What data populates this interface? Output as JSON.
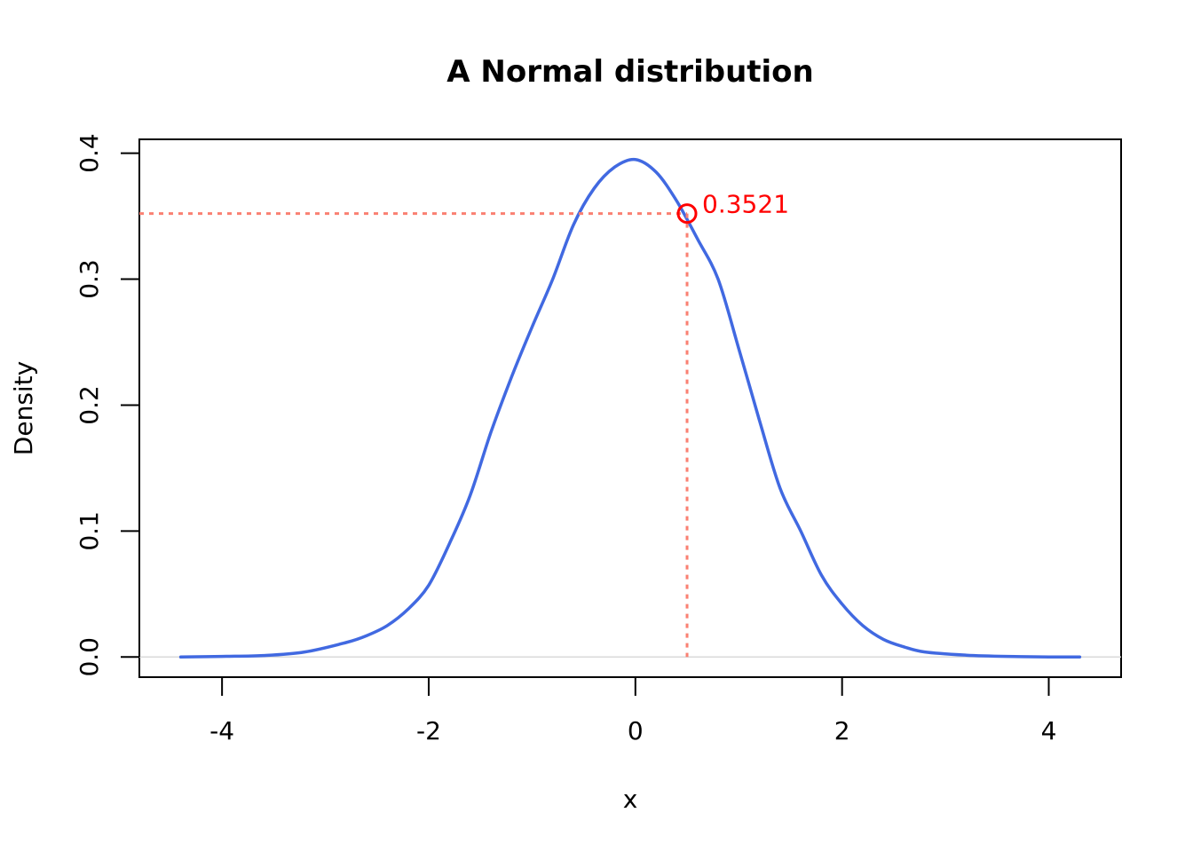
{
  "chart_data": {
    "type": "line",
    "title": "A Normal distribution",
    "xlabel": "x",
    "ylabel": "Density",
    "xlim": [
      -4.8,
      4.7
    ],
    "ylim": [
      -0.016,
      0.411
    ],
    "xticks": [
      -4,
      -2,
      0,
      2,
      4
    ],
    "xtick_labels": [
      "-4",
      "-2",
      "0",
      "2",
      "4"
    ],
    "yticks": [
      0.0,
      0.1,
      0.2,
      0.3,
      0.4
    ],
    "ytick_labels": [
      "0.0",
      "0.1",
      "0.2",
      "0.3",
      "0.4"
    ],
    "grid": false,
    "series": [
      {
        "color": "#4169E1",
        "x": [
          -4.4,
          -4.0,
          -3.6,
          -3.2,
          -2.8,
          -2.6,
          -2.4,
          -2.2,
          -2.0,
          -1.8,
          -1.6,
          -1.4,
          -1.2,
          -1.0,
          -0.8,
          -0.6,
          -0.4,
          -0.2,
          0.0,
          0.2,
          0.4,
          0.6,
          0.8,
          1.0,
          1.2,
          1.4,
          1.6,
          1.8,
          2.0,
          2.2,
          2.4,
          2.6,
          2.8,
          3.2,
          3.6,
          4.0,
          4.3
        ],
        "y": [
          0.0,
          0.0005,
          0.0012,
          0.004,
          0.0115,
          0.017,
          0.025,
          0.038,
          0.057,
          0.09,
          0.128,
          0.178,
          0.222,
          0.262,
          0.3,
          0.343,
          0.372,
          0.389,
          0.395,
          0.385,
          0.362,
          0.332,
          0.3,
          0.245,
          0.188,
          0.134,
          0.1,
          0.065,
          0.042,
          0.025,
          0.014,
          0.008,
          0.004,
          0.0015,
          0.0005,
          0.0001,
          0.0
        ]
      }
    ],
    "zero_line": {
      "y": 0.0,
      "color": "#d9d9d9"
    },
    "annotation": {
      "x": 0.5,
      "y": 0.3521,
      "label": "0.3521",
      "point_color": "#ff0000",
      "label_color": "#ff0000",
      "guide_color": "#fa8072"
    }
  }
}
